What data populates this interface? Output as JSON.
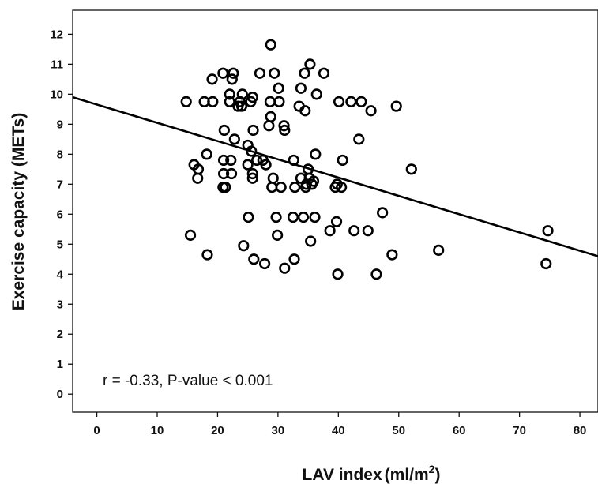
{
  "chart_data": {
    "type": "scatter",
    "title": "",
    "xlabel": "LAV index",
    "xunit": "(ml/m",
    "xunit_sup": "2",
    "xunit_close": ")",
    "ylabel": "Exercise capacity (METs)",
    "xlim": [
      -4,
      83
    ],
    "ylim": [
      -0.6,
      12.8
    ],
    "xticks": [
      0,
      10,
      20,
      30,
      40,
      50,
      60,
      70,
      80
    ],
    "yticks": [
      0,
      1,
      2,
      3,
      4,
      5,
      6,
      7,
      8,
      9,
      10,
      11,
      12
    ],
    "grid": false,
    "annotation": "r = -0.33, P-value < 0.001",
    "regression_line": {
      "x": [
        -4,
        83
      ],
      "y": [
        9.9,
        4.6
      ]
    },
    "points": [
      [
        28.8,
        11.65
      ],
      [
        35.3,
        11.0
      ],
      [
        20.9,
        10.7
      ],
      [
        22.6,
        10.7
      ],
      [
        27.0,
        10.7
      ],
      [
        29.4,
        10.7
      ],
      [
        34.4,
        10.7
      ],
      [
        37.6,
        10.7
      ],
      [
        19.1,
        10.5
      ],
      [
        22.4,
        10.5
      ],
      [
        30.1,
        10.2
      ],
      [
        33.8,
        10.2
      ],
      [
        22.0,
        10.0
      ],
      [
        24.1,
        10.0
      ],
      [
        36.4,
        10.0
      ],
      [
        14.8,
        9.75
      ],
      [
        17.8,
        9.75
      ],
      [
        19.2,
        9.75
      ],
      [
        22.0,
        9.75
      ],
      [
        23.7,
        9.75
      ],
      [
        25.5,
        9.75
      ],
      [
        28.7,
        9.75
      ],
      [
        30.2,
        9.75
      ],
      [
        40.1,
        9.75
      ],
      [
        42.1,
        9.75
      ],
      [
        43.8,
        9.75
      ],
      [
        23.4,
        9.6
      ],
      [
        24.0,
        9.6
      ],
      [
        33.5,
        9.6
      ],
      [
        34.5,
        9.45
      ],
      [
        45.4,
        9.45
      ],
      [
        49.6,
        9.6
      ],
      [
        25.8,
        9.9
      ],
      [
        28.8,
        9.25
      ],
      [
        28.5,
        8.95
      ],
      [
        31.0,
        8.95
      ],
      [
        21.1,
        8.8
      ],
      [
        25.9,
        8.8
      ],
      [
        31.1,
        8.8
      ],
      [
        22.8,
        8.5
      ],
      [
        43.4,
        8.5
      ],
      [
        25.0,
        8.3
      ],
      [
        25.6,
        8.1
      ],
      [
        18.2,
        8.0
      ],
      [
        36.2,
        8.0
      ],
      [
        21.0,
        7.8
      ],
      [
        22.2,
        7.8
      ],
      [
        26.5,
        7.8
      ],
      [
        27.5,
        7.8
      ],
      [
        32.6,
        7.8
      ],
      [
        40.7,
        7.8
      ],
      [
        16.1,
        7.65
      ],
      [
        28.0,
        7.65
      ],
      [
        16.8,
        7.5
      ],
      [
        25.0,
        7.65
      ],
      [
        52.1,
        7.5
      ],
      [
        35.0,
        7.5
      ],
      [
        16.7,
        7.2
      ],
      [
        21.0,
        7.35
      ],
      [
        22.3,
        7.35
      ],
      [
        25.8,
        7.35
      ],
      [
        29.2,
        7.2
      ],
      [
        33.8,
        7.2
      ],
      [
        35.2,
        7.2
      ],
      [
        25.8,
        7.2
      ],
      [
        34.7,
        7.0
      ],
      [
        35.6,
        7.0
      ],
      [
        39.8,
        7.0
      ],
      [
        20.9,
        6.9
      ],
      [
        21.3,
        6.9
      ],
      [
        29.0,
        6.9
      ],
      [
        30.5,
        6.9
      ],
      [
        32.8,
        6.9
      ],
      [
        34.6,
        6.9
      ],
      [
        39.5,
        6.9
      ],
      [
        40.5,
        6.9
      ],
      [
        35.9,
        7.1
      ],
      [
        47.3,
        6.05
      ],
      [
        25.1,
        5.9
      ],
      [
        29.7,
        5.9
      ],
      [
        32.5,
        5.9
      ],
      [
        34.2,
        5.9
      ],
      [
        36.1,
        5.9
      ],
      [
        39.7,
        5.75
      ],
      [
        38.6,
        5.45
      ],
      [
        42.6,
        5.45
      ],
      [
        44.9,
        5.45
      ],
      [
        74.7,
        5.45
      ],
      [
        15.5,
        5.3
      ],
      [
        29.9,
        5.3
      ],
      [
        35.4,
        5.1
      ],
      [
        24.3,
        4.95
      ],
      [
        56.6,
        4.8
      ],
      [
        18.3,
        4.65
      ],
      [
        48.9,
        4.65
      ],
      [
        26.0,
        4.5
      ],
      [
        32.7,
        4.5
      ],
      [
        27.8,
        4.35
      ],
      [
        74.4,
        4.35
      ],
      [
        31.1,
        4.2
      ],
      [
        39.9,
        4.0
      ],
      [
        46.3,
        4.0
      ]
    ]
  }
}
